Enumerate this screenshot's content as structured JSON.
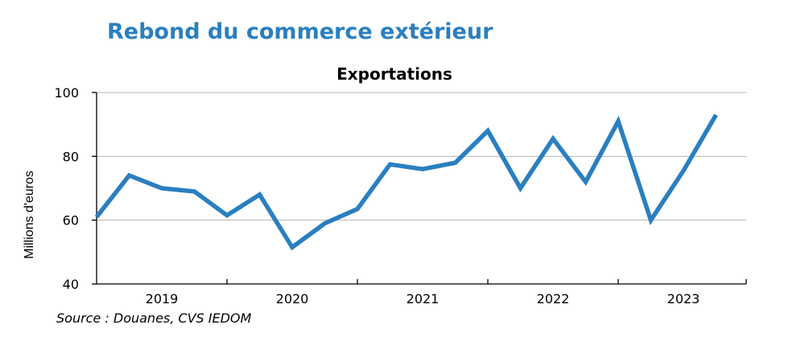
{
  "title": "Rebond du commerce extérieur",
  "source": "Source :  Douanes, CVS IEDOM",
  "colors": {
    "title": "#2a7fc0",
    "series": "#2a7fc0",
    "grid": "#b4b4b4"
  },
  "chart_data": {
    "type": "line",
    "title": "Exportations",
    "ylabel": "Millions d'euros",
    "xlabel": "",
    "ylim": [
      40,
      100
    ],
    "yticks": [
      40,
      60,
      80,
      100
    ],
    "grid": true,
    "legend": "none",
    "year_labels": [
      "2019",
      "2020",
      "2021",
      "2022",
      "2023"
    ],
    "x": [
      "2018T4",
      "2019T1",
      "2019T2",
      "2019T3",
      "2019T4",
      "2020T1",
      "2020T2",
      "2020T3",
      "2020T4",
      "2021T1",
      "2021T2",
      "2021T3",
      "2021T4",
      "2022T1",
      "2022T2",
      "2022T3",
      "2022T4",
      "2023T1",
      "2023T2",
      "2023T3"
    ],
    "series": [
      {
        "values": [
          61,
          74,
          70,
          69,
          61.5,
          68,
          51.5,
          59,
          63.5,
          77.5,
          76,
          78,
          88,
          70,
          85.5,
          72,
          91,
          60,
          75.5,
          93
        ]
      }
    ]
  }
}
